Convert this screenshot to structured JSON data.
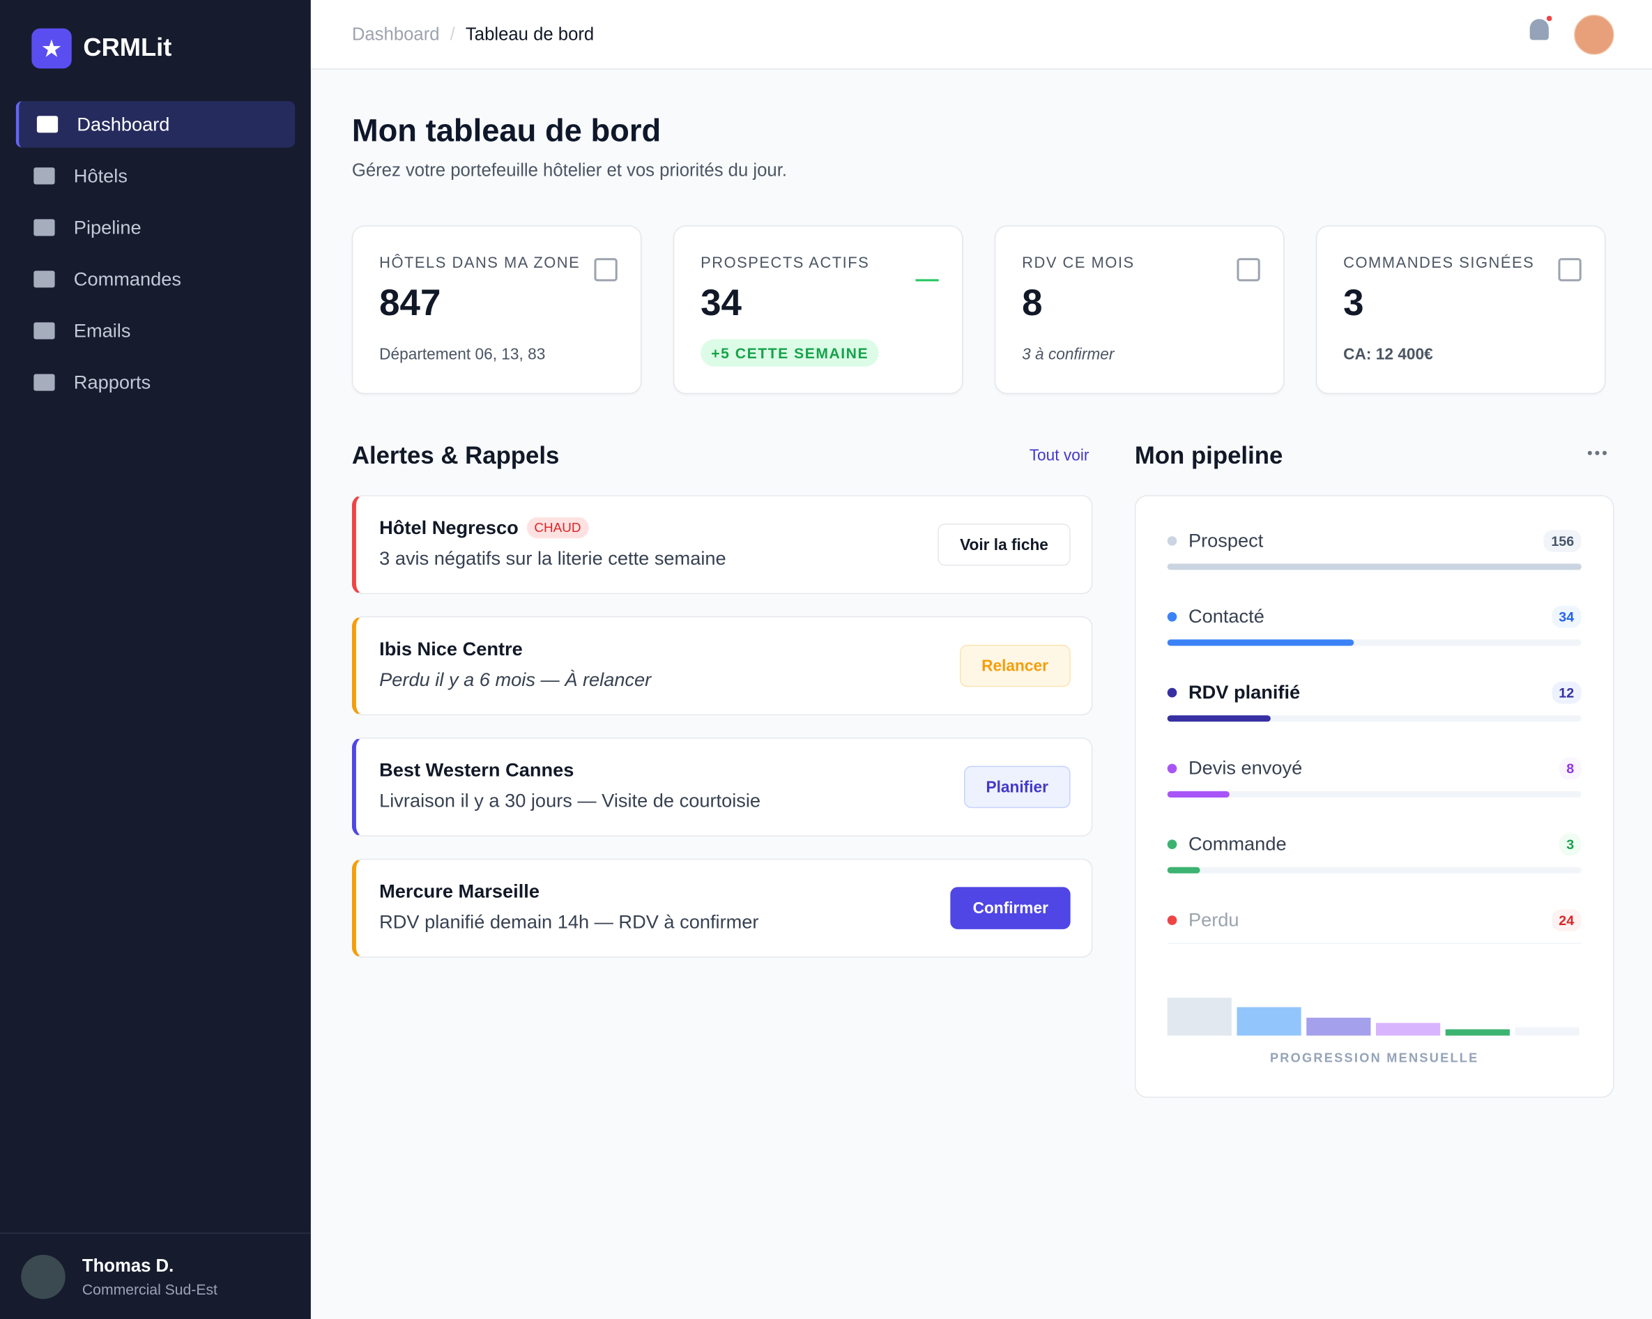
{
  "sidebar": {
    "brand": "CRMLit",
    "nav": [
      "Dashboard",
      "Hôtels",
      "Pipeline",
      "Commandes",
      "Emails",
      "Rapports"
    ],
    "user": {
      "name": "Thomas D.",
      "role": "Commercial Sud-Est"
    }
  },
  "header": {
    "breadcrumb": [
      "Dashboard",
      "Tableau de bord"
    ]
  },
  "page": {
    "title": "Mon tableau de bord",
    "subtitle": "Gérez votre portefeuille hôtelier et vos priorités du jour."
  },
  "stats": [
    {
      "label": "HÔTELS DANS MA ZONE",
      "value": "847",
      "note": "Département 06, 13, 83"
    },
    {
      "label": "PROSPECTS ACTIFS",
      "value": "34",
      "note": "+5 CETTE SEMAINE"
    },
    {
      "label": "RDV CE MOIS",
      "value": "8",
      "note": "3 à confirmer"
    },
    {
      "label": "COMMANDES SIGNÉES",
      "value": "3",
      "note": "CA: 12 400€"
    }
  ],
  "alerts": {
    "title": "Alertes & Rappels",
    "link": "Tout voir",
    "items": [
      {
        "name": "Hôtel Negresco",
        "tag": "CHAUD",
        "text": "3 avis négatifs sur la literie cette semaine",
        "action": "Voir la fiche"
      },
      {
        "name": "Ibis Nice Centre",
        "text": "Perdu il y a 6 mois — À relancer",
        "action": "Relancer"
      },
      {
        "name": "Best Western Cannes",
        "text": "Livraison il y a 30 jours — Visite de courtoisie",
        "action": "Planifier"
      },
      {
        "name": "Mercure Marseille",
        "text": "RDV planifié demain 14h — RDV à confirmer",
        "action": "Confirmer"
      }
    ]
  },
  "pipeline": {
    "title": "Mon pipeline",
    "stages": [
      {
        "name": "Prospect",
        "count": "156"
      },
      {
        "name": "Contacté",
        "count": "34"
      },
      {
        "name": "RDV planifié",
        "count": "12"
      },
      {
        "name": "Devis envoyé",
        "count": "8"
      },
      {
        "name": "Commande",
        "count": "3"
      },
      {
        "name": "Perdu",
        "count": "24"
      }
    ],
    "footer": "PROGRESSION MENSUELLE"
  }
}
